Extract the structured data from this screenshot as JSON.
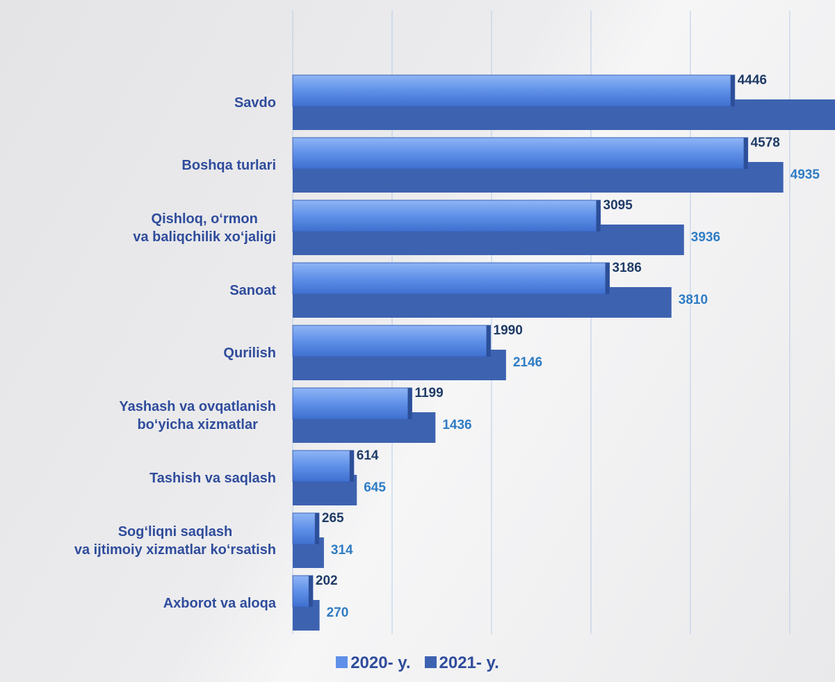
{
  "chart_data": {
    "type": "hbar",
    "categories": [
      "Savdo",
      "Boshqa turlari",
      "Qishloq, o‘rmon\nva baliqchilik xo‘jaligi",
      "Sanoat",
      "Qurilish",
      "Yashash va ovqatlanish\nbo‘yicha xizmatlar",
      "Tashish va saqlash",
      "Sog‘liqni saqlash\nva ijtimoiy xizmatlar ko‘rsatish",
      "Axborot va aloqa"
    ],
    "series": [
      {
        "name": "2020- y.",
        "color": "#5f90e8",
        "values": [
          4446,
          4578,
          3095,
          3186,
          1990,
          1199,
          614,
          265,
          202
        ]
      },
      {
        "name": "2021- y.",
        "color": "#3d62b0",
        "values": [
          5600,
          4935,
          3936,
          3810,
          2146,
          1436,
          645,
          314,
          270
        ]
      }
    ],
    "xlim": [
      0,
      5455
    ],
    "xticks": [
      0,
      1000,
      2000,
      3000,
      4000,
      5000
    ],
    "grid": true,
    "legend": "bottom"
  }
}
